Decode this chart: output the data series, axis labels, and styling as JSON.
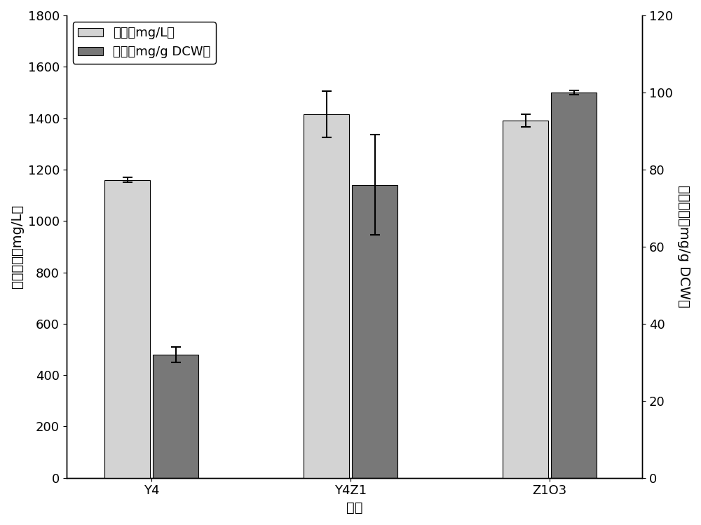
{
  "categories": [
    "Y4",
    "Y4Z1",
    "Z1O3"
  ],
  "light_values": [
    1160,
    1415,
    1390
  ],
  "dark_values": [
    32,
    76,
    100
  ],
  "light_errors": [
    10,
    90,
    25
  ],
  "dark_errors": [
    2.0,
    13.0,
    0.5
  ],
  "left_ylim": [
    0,
    1800
  ],
  "right_ylim": [
    0,
    120
  ],
  "left_yticks": [
    0,
    200,
    400,
    600,
    800,
    1000,
    1200,
    1400,
    1600,
    1800
  ],
  "right_yticks": [
    0,
    20,
    40,
    60,
    80,
    100,
    120
  ],
  "xlabel": "菌株",
  "ylabel_left": "胞内含量（mg/L）",
  "ylabel_right": "胞内含量（mg/g DCW）",
  "legend_light": "胞内（mg/L）",
  "legend_dark": "胞内（mg/g DCW）",
  "light_color": "#d3d3d3",
  "dark_color": "#787878",
  "bar_width": 0.32,
  "background_color": "#ffffff",
  "label_fontsize": 14,
  "tick_fontsize": 13,
  "legend_fontsize": 13
}
